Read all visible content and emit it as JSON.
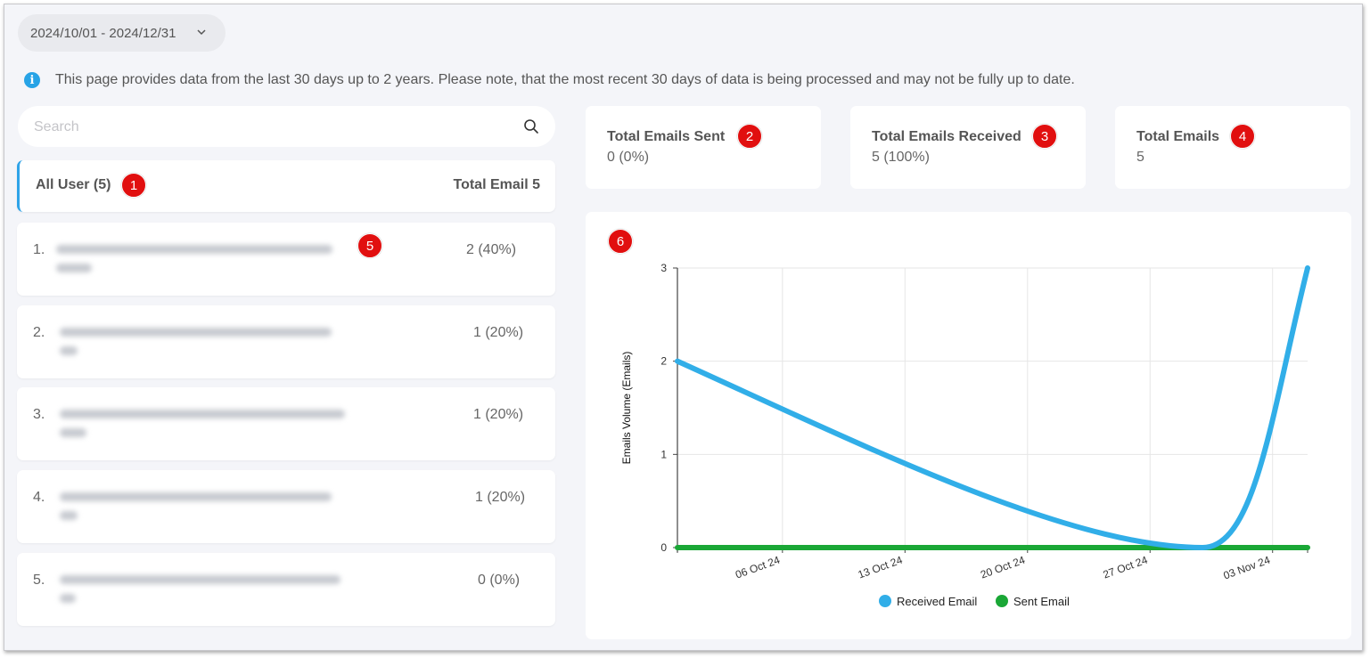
{
  "date_range": "2024/10/01 - 2024/12/31",
  "info_text": "This page provides data from the last 30 days up to 2 years. Please note, that the most recent 30 days of data is being processed and may not be fully up to date.",
  "search": {
    "placeholder": "Search"
  },
  "user_list": {
    "header_label": "All User (5)",
    "header_total": "Total Email 5",
    "users": [
      {
        "index": "1.",
        "email_pct": "2 (40%)"
      },
      {
        "index": "2.",
        "email_pct": "1 (20%)"
      },
      {
        "index": "3.",
        "email_pct": "1 (20%)"
      },
      {
        "index": "4.",
        "email_pct": "1 (20%)"
      },
      {
        "index": "5.",
        "email_pct": "0 (0%)"
      }
    ]
  },
  "stats": {
    "sent": {
      "title": "Total Emails Sent",
      "value": "0 (0%)"
    },
    "received": {
      "title": "Total Emails Received",
      "value": "5 (100%)"
    },
    "total": {
      "title": "Total Emails",
      "value": "5"
    }
  },
  "badges": [
    "1",
    "2",
    "3",
    "4",
    "5",
    "6"
  ],
  "colors": {
    "accent": "#2ea3e8",
    "badge": "#e10f0f",
    "received": "#31aee8",
    "sent": "#1aa736"
  },
  "chart_data": {
    "type": "line",
    "x": [
      "2024-09-30",
      "2024-10-30",
      "2024-11-05"
    ],
    "x_ticks": [
      "06 Oct 24",
      "13 Oct 24",
      "20 Oct 24",
      "27 Oct 24",
      "03 Nov 24"
    ],
    "y_ticks": [
      "0",
      "1",
      "2",
      "3"
    ],
    "ylabel": "Emails Volume (Emails)",
    "ylim": [
      0,
      3
    ],
    "grid": true,
    "legend_position": "bottom",
    "series": [
      {
        "name": "Received Email",
        "color": "#31aee8",
        "values": [
          2,
          0,
          3
        ]
      },
      {
        "name": "Sent Email",
        "color": "#1aa736",
        "values": [
          0,
          0,
          0
        ]
      }
    ]
  }
}
